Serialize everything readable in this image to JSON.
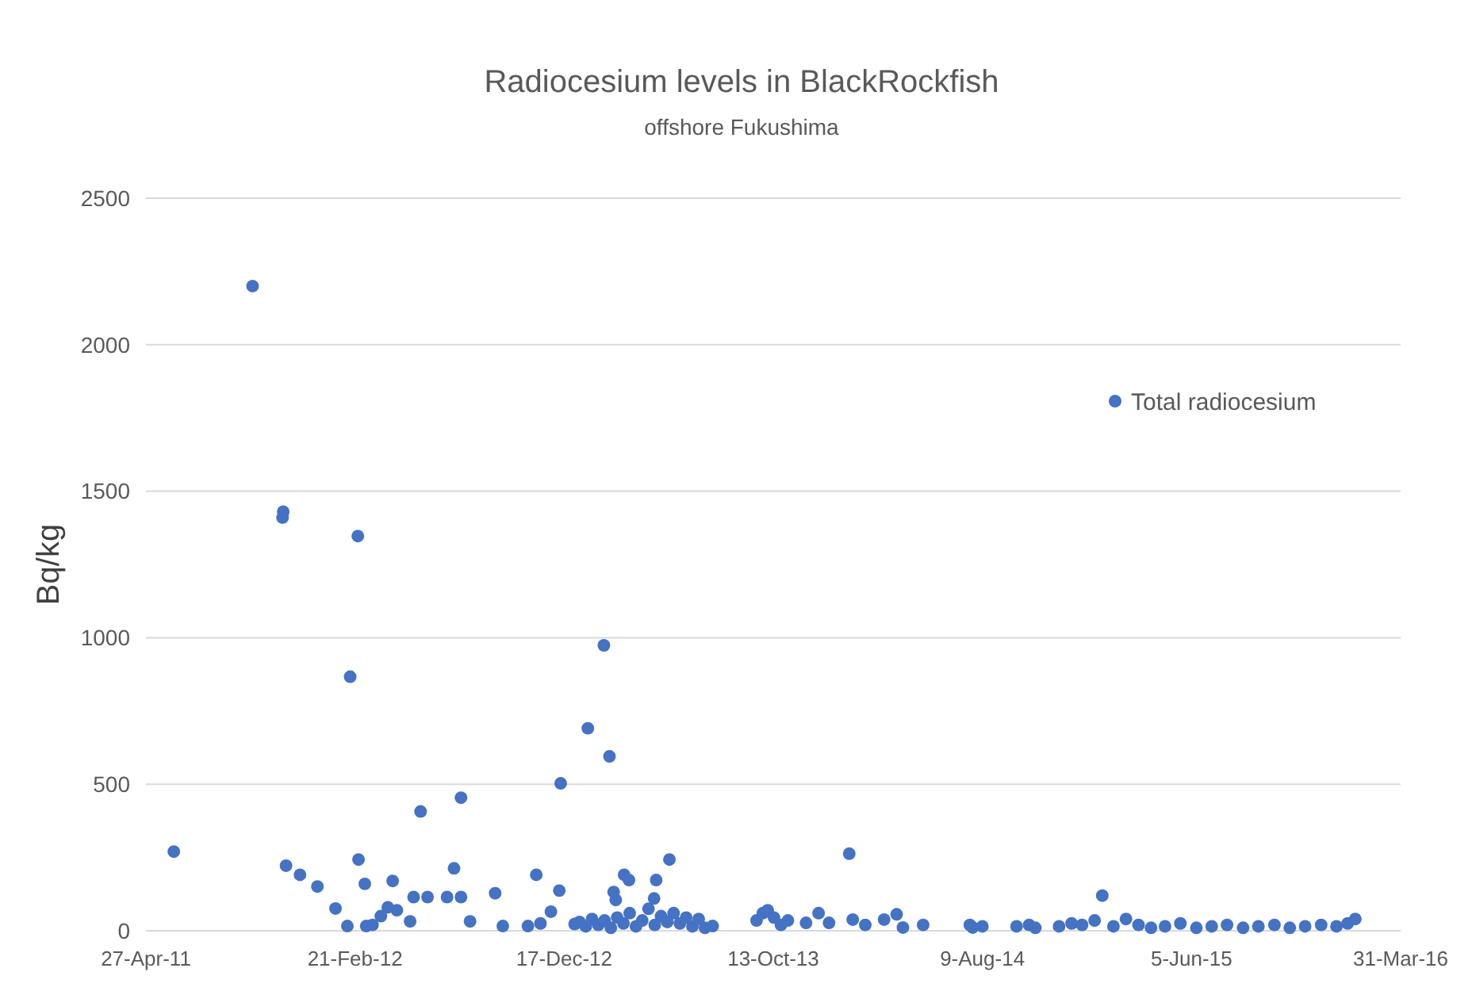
{
  "chart_data": {
    "type": "scatter",
    "title": "Radiocesium levels in BlackRockfish",
    "subtitle": "offshore Fukushima",
    "ylabel": "Bq/kg",
    "xlim": [
      "2011-04-27",
      "2016-03-31"
    ],
    "xticks": [
      {
        "value": "2011-04-27",
        "label": "27-Apr-11"
      },
      {
        "value": "2012-02-21",
        "label": "21-Feb-12"
      },
      {
        "value": "2012-12-17",
        "label": "17-Dec-12"
      },
      {
        "value": "2013-10-13",
        "label": "13-Oct-13"
      },
      {
        "value": "2014-08-09",
        "label": "9-Aug-14"
      },
      {
        "value": "2015-06-05",
        "label": "5-Jun-15"
      },
      {
        "value": "2016-03-31",
        "label": "31-Mar-16"
      }
    ],
    "ylim": [
      0,
      2500
    ],
    "yticks": [
      0,
      500,
      1000,
      1500,
      2000,
      2500
    ],
    "grid": "y",
    "legend": "right",
    "marker": "circle",
    "series": [
      {
        "name": "Total radiocesium",
        "color": "#4472c4",
        "x": [
          "2011-06-06",
          "2011-09-27",
          "2011-11-09",
          "2011-11-10",
          "2012-02-25",
          "2012-02-14",
          "2013-02-12",
          "2013-01-20",
          "2013-02-20",
          "2012-12-12",
          "2012-05-25",
          "2012-07-22",
          "2011-11-14",
          "2011-12-04",
          "2011-12-29",
          "2012-01-24",
          "2012-02-10",
          "2012-02-26",
          "2012-03-06",
          "2012-03-08",
          "2012-03-17",
          "2012-03-29",
          "2012-04-08",
          "2012-04-21",
          "2012-04-15",
          "2012-05-10",
          "2012-05-15",
          "2012-06-04",
          "2012-07-02",
          "2012-07-22",
          "2012-07-12",
          "2012-08-04",
          "2012-09-09",
          "2012-09-20",
          "2012-10-26",
          "2012-11-13",
          "2012-11-07",
          "2012-11-28",
          "2012-12-10",
          "2013-01-01",
          "2013-02-26",
          "2013-03-01",
          "2013-03-13",
          "2013-03-20",
          "2013-04-28",
          "2013-04-25",
          "2013-05-17",
          "2013-07-18",
          "2013-01-08",
          "2013-01-17",
          "2013-01-26",
          "2013-02-04",
          "2013-02-13",
          "2013-02-22",
          "2013-03-03",
          "2013-03-12",
          "2013-03-21",
          "2013-03-30",
          "2013-04-08",
          "2013-04-17",
          "2013-04-26",
          "2013-05-05",
          "2013-05-14",
          "2013-05-23",
          "2013-06-01",
          "2013-06-10",
          "2013-06-19",
          "2013-06-28",
          "2013-07-07",
          "2013-09-19",
          "2013-09-28",
          "2013-10-05",
          "2013-10-14",
          "2013-10-24",
          "2013-11-03",
          "2013-11-29",
          "2013-12-17",
          "2014-01-01",
          "2014-01-30",
          "2014-02-04",
          "2014-02-22",
          "2014-03-21",
          "2014-04-08",
          "2014-04-17",
          "2014-05-16",
          "2014-07-22",
          "2014-07-26",
          "2014-08-09",
          "2014-09-27",
          "2014-10-15",
          "2014-10-24",
          "2014-11-27",
          "2014-12-15",
          "2014-12-30",
          "2015-01-17",
          "2015-01-28",
          "2015-02-13",
          "2015-03-03",
          "2015-03-21",
          "2015-04-08",
          "2015-04-28",
          "2015-05-20",
          "2015-06-12",
          "2015-07-04",
          "2015-07-26",
          "2015-08-18",
          "2015-09-09",
          "2015-10-02",
          "2015-10-24",
          "2015-11-15",
          "2015-12-08",
          "2015-12-30",
          "2016-01-15",
          "2016-01-26"
        ],
        "values": [
          270,
          2200,
          1410,
          1430,
          1347,
          867,
          974,
          691,
          595,
          503,
          407,
          454,
          222,
          191,
          151,
          76,
          16,
          243,
          160,
          16,
          20,
          50,
          80,
          70,
          170,
          32,
          115,
          115,
          115,
          115,
          213,
          32,
          128,
          16,
          16,
          25,
          191,
          65,
          137,
          23,
          132,
          105,
          191,
          173,
          173,
          110,
          243,
          16,
          30,
          15,
          40,
          20,
          35,
          10,
          45,
          25,
          60,
          15,
          35,
          75,
          20,
          50,
          30,
          60,
          25,
          45,
          15,
          40,
          10,
          35,
          60,
          70,
          45,
          20,
          35,
          27,
          60,
          27,
          263,
          38,
          20,
          38,
          56,
          11,
          20,
          20,
          11,
          15,
          15,
          20,
          10,
          15,
          25,
          20,
          35,
          120,
          15,
          40,
          20,
          10,
          15,
          25,
          10,
          15,
          20,
          10,
          15,
          20,
          10,
          15,
          20,
          15,
          25,
          40
        ]
      }
    ]
  }
}
